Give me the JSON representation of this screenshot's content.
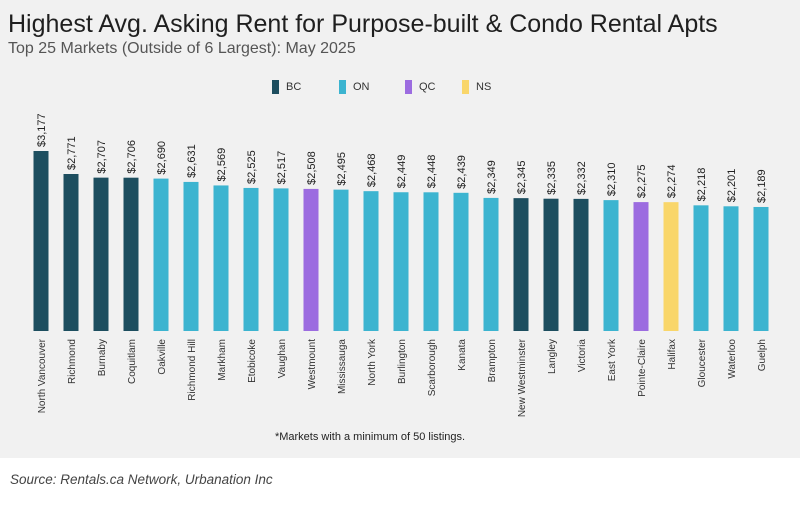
{
  "chart_data": {
    "type": "bar",
    "title": "Highest Avg. Asking Rent for Purpose-built & Condo Rental Apts",
    "subtitle": "Top 25 Markets (Outside of 6 Largest): May 2025",
    "footnote": "*Markets with a minimum of 50 listings.",
    "source": "Source: Rentals.ca Network, Urbanation Inc",
    "xlabel": "",
    "ylabel": "",
    "ylim": [
      0,
      3177
    ],
    "grid": false,
    "legend_position": "top-center",
    "legend": [
      {
        "name": "BC",
        "color": "#1d4e5f"
      },
      {
        "name": "ON",
        "color": "#3cb4d0"
      },
      {
        "name": "QC",
        "color": "#9c6ce0"
      },
      {
        "name": "NS",
        "color": "#f9d66a"
      }
    ],
    "categories": [
      "North Vancouver",
      "Richmond",
      "Burnaby",
      "Coquitlam",
      "Oakville",
      "Richmond Hill",
      "Markham",
      "Etobicoke",
      "Vaughan",
      "Westmount",
      "Mississauga",
      "North York",
      "Burlington",
      "Scarborough",
      "Kanata",
      "Brampton",
      "New Westminster",
      "Langley",
      "Victoria",
      "East York",
      "Pointe-Claire",
      "Halifax",
      "Gloucester",
      "Waterloo",
      "Guelph"
    ],
    "values": [
      3177,
      2771,
      2707,
      2706,
      2690,
      2631,
      2569,
      2525,
      2517,
      2508,
      2495,
      2468,
      2449,
      2448,
      2439,
      2349,
      2345,
      2335,
      2332,
      2310,
      2275,
      2274,
      2218,
      2201,
      2189
    ],
    "value_labels": [
      "$3,177",
      "$2,771",
      "$2,707",
      "$2,706",
      "$2,690",
      "$2,631",
      "$2,569",
      "$2,525",
      "$2,517",
      "$2,508",
      "$2,495",
      "$2,468",
      "$2,449",
      "$2,448",
      "$2,439",
      "$2,349",
      "$2,345",
      "$2,335",
      "$2,332",
      "$2,310",
      "$2,275",
      "$2,274",
      "$2,218",
      "$2,201",
      "$2,189"
    ],
    "provinces": [
      "BC",
      "BC",
      "BC",
      "BC",
      "ON",
      "ON",
      "ON",
      "ON",
      "ON",
      "QC",
      "ON",
      "ON",
      "ON",
      "ON",
      "ON",
      "ON",
      "BC",
      "BC",
      "BC",
      "ON",
      "QC",
      "NS",
      "ON",
      "ON",
      "ON"
    ]
  }
}
